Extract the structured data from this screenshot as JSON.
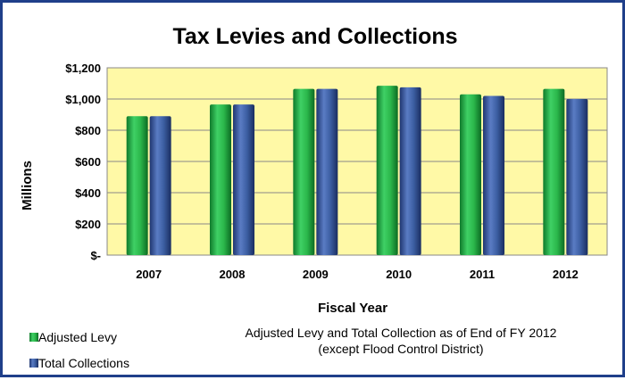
{
  "chart_data": {
    "type": "bar",
    "title": "Tax Levies and Collections",
    "xlabel": "Fiscal Year",
    "ylabel": "Millions",
    "categories": [
      "2007",
      "2008",
      "2009",
      "2010",
      "2011",
      "2012"
    ],
    "series": [
      {
        "name": "Adjusted Levy",
        "values": [
          890,
          965,
          1065,
          1085,
          1030,
          1065
        ],
        "color": "#2db34a"
      },
      {
        "name": "Total Collections",
        "values": [
          890,
          965,
          1065,
          1075,
          1020,
          1000
        ],
        "color": "#3a5a9c"
      }
    ],
    "ylim": [
      0,
      1200
    ],
    "yticks": [
      0,
      200,
      400,
      600,
      800,
      1000,
      1200
    ],
    "ytick_labels": [
      "$-",
      "$200",
      "$400",
      "$600",
      "$800",
      "$1,000",
      "$1,200"
    ],
    "grid": true,
    "plot_background": "#fff9a6",
    "legend_position": "bottom-left",
    "note_lines": [
      "Adjusted Levy and Total Collection as of End of FY 2012",
      "(except Flood Control District)"
    ]
  },
  "colors": {
    "frame_border": "#1f3f8a",
    "gridline": "#888888"
  }
}
